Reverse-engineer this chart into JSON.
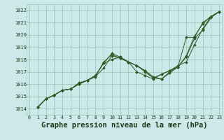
{
  "bg_color": "#cce8e8",
  "grid_color": "#99ccbb",
  "line_color": "#2d5a27",
  "marker_color": "#2d5a27",
  "xlabel": "Graphe pression niveau de la mer (hPa)",
  "xlabel_fontsize": 7.5,
  "xlim": [
    -0.3,
    23.3
  ],
  "ylim": [
    1013.5,
    1022.5
  ],
  "yticks": [
    1014,
    1015,
    1016,
    1017,
    1018,
    1019,
    1020,
    1021,
    1022
  ],
  "xticks": [
    0,
    1,
    2,
    3,
    4,
    5,
    6,
    7,
    8,
    9,
    10,
    11,
    12,
    13,
    14,
    15,
    16,
    17,
    18,
    19,
    20,
    21,
    22,
    23
  ],
  "series": [
    [
      1014.1,
      1014.8,
      1015.1,
      1015.5,
      1015.6,
      1016.0,
      1016.3,
      1016.6,
      1017.8,
      1018.4,
      1018.1,
      1017.8,
      1017.0,
      1016.7,
      1016.4,
      1016.8,
      1017.1,
      1017.4,
      1019.8,
      1019.8,
      1021.0,
      1021.5,
      1021.9
    ],
    [
      1014.1,
      1014.8,
      1015.1,
      1015.5,
      1015.6,
      1016.0,
      1016.3,
      1016.6,
      1017.3,
      1018.3,
      1018.1,
      1017.8,
      1017.5,
      1017.0,
      1016.5,
      1016.8,
      1017.1,
      1017.5,
      1017.8,
      1019.2,
      1020.5,
      1021.5,
      1021.9
    ],
    [
      1014.1,
      1014.8,
      1015.1,
      1015.5,
      1015.6,
      1016.0,
      1016.3,
      1016.7,
      1017.7,
      1018.5,
      1018.2,
      1017.8,
      1017.5,
      1017.1,
      1016.6,
      1016.4,
      1017.0,
      1017.4,
      1018.2,
      1019.7,
      1020.4,
      1021.4,
      1021.9
    ],
    [
      1014.1,
      1014.8,
      1015.1,
      1015.5,
      1015.6,
      1016.1,
      1016.3,
      1016.7,
      1017.7,
      1018.0,
      1018.2,
      1017.8,
      1017.5,
      1017.1,
      1016.5,
      1016.4,
      1016.9,
      1017.4,
      1018.3,
      1019.9,
      1020.9,
      1021.5,
      1021.9
    ]
  ]
}
